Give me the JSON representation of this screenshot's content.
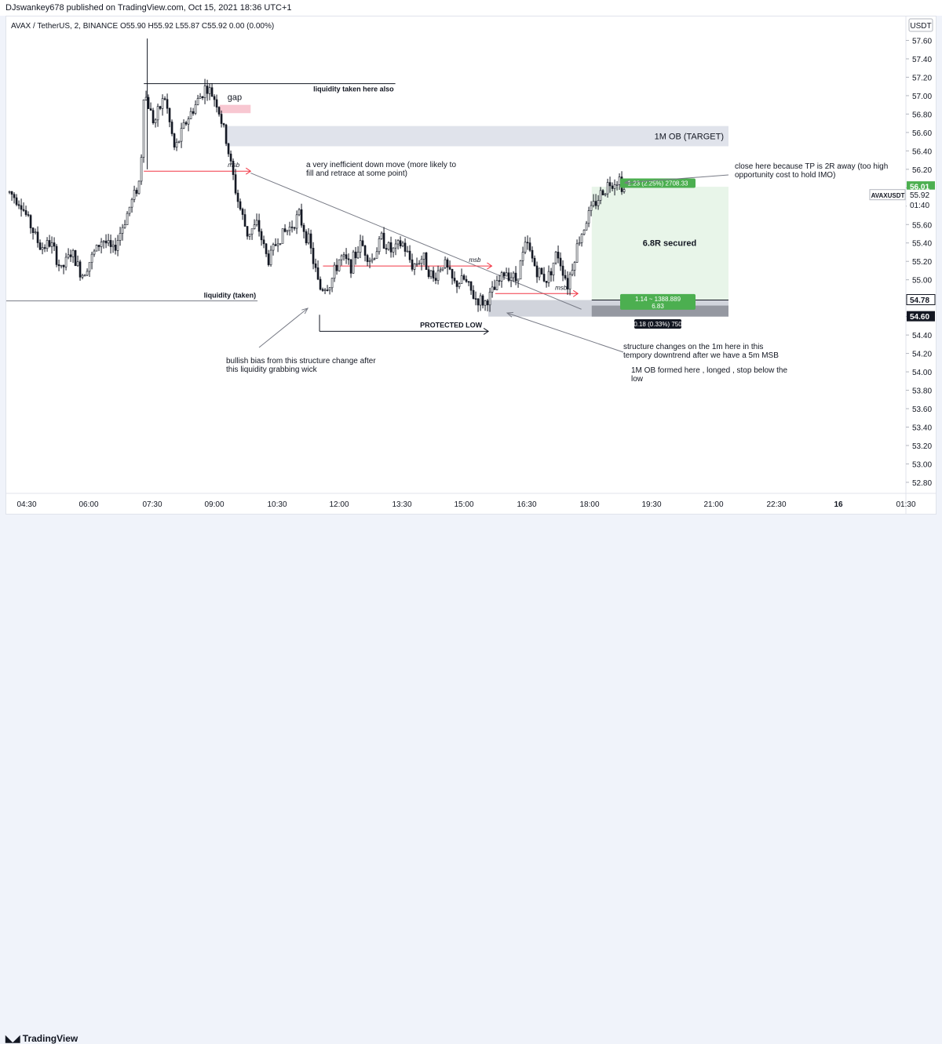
{
  "publisher_line": "DJswankey678 published on TradingView.com, Oct 15, 2021 18:36 UTC+1",
  "symbol_line": "AVAX / TetherUS, 2, BINANCE  O55.90  H55.92  L55.87  C55.92  0.00 (0.00%)",
  "footer_brand": "TradingView",
  "colors": {
    "up_candle": "#ffffff",
    "down_candle": "#131722",
    "accent_green": "#4caf50",
    "annotation_red": "#f23645",
    "zone_gray": "#e0e3eb"
  },
  "chart_data": {
    "type": "candlestick",
    "title": "AVAX / TetherUS, 2, BINANCE",
    "ohlc_header": {
      "open": 55.9,
      "high": 55.92,
      "low": 55.87,
      "close": 55.92,
      "change": "0.00 (0.00%)"
    },
    "currency": "USDT",
    "ylim": [
      52.68,
      57.86
    ],
    "y_ticks": [
      "57.60",
      "57.40",
      "57.20",
      "57.00",
      "56.80",
      "56.60",
      "56.40",
      "56.20",
      "56.00",
      "55.80",
      "55.60",
      "55.40",
      "55.20",
      "55.00",
      "54.80",
      "54.60",
      "54.40",
      "54.20",
      "54.00",
      "53.80",
      "53.60",
      "53.40",
      "53.20",
      "53.00",
      "52.80"
    ],
    "x_ticks": [
      "04:30",
      "06:00",
      "07:30",
      "09:00",
      "10:30",
      "12:00",
      "13:30",
      "15:00",
      "16:30",
      "18:00",
      "19:30",
      "21:00",
      "22:30",
      "16",
      "01:30"
    ],
    "price_labels": [
      {
        "label": "56.01",
        "value": 56.01,
        "style": "green"
      },
      {
        "label": "55.92",
        "value": 55.92,
        "style": "plain"
      },
      {
        "label": "01:40",
        "value": 55.81,
        "style": "plain"
      },
      {
        "label": "54.78",
        "value": 54.78,
        "style": "outline"
      },
      {
        "label": "54.60",
        "value": 54.6,
        "style": "dark"
      }
    ],
    "symbol_tag": "AVAXUSDT",
    "price_path": [
      [
        "04:05",
        55.95
      ],
      [
        "04:20",
        55.85
      ],
      [
        "04:35",
        55.6
      ],
      [
        "04:50",
        55.35
      ],
      [
        "05:05",
        55.4
      ],
      [
        "05:20",
        55.1
      ],
      [
        "05:35",
        55.3
      ],
      [
        "05:50",
        55.05
      ],
      [
        "06:05",
        55.25
      ],
      [
        "06:20",
        55.45
      ],
      [
        "06:35",
        55.3
      ],
      [
        "06:50",
        55.6
      ],
      [
        "07:05",
        55.9
      ],
      [
        "07:15",
        56.1
      ],
      [
        "07:20",
        57.05
      ],
      [
        "07:35",
        56.7
      ],
      [
        "07:50",
        57.0
      ],
      [
        "08:05",
        56.4
      ],
      [
        "08:20",
        56.7
      ],
      [
        "08:35",
        56.9
      ],
      [
        "08:50",
        57.1
      ],
      [
        "09:05",
        56.95
      ],
      [
        "09:20",
        56.5
      ],
      [
        "09:35",
        55.9
      ],
      [
        "09:50",
        55.5
      ],
      [
        "10:05",
        55.6
      ],
      [
        "10:20",
        55.2
      ],
      [
        "10:35",
        55.45
      ],
      [
        "10:50",
        55.55
      ],
      [
        "11:05",
        55.7
      ],
      [
        "11:20",
        55.4
      ],
      [
        "11:35",
        54.9
      ],
      [
        "11:50",
        54.95
      ],
      [
        "12:05",
        55.25
      ],
      [
        "12:20",
        55.15
      ],
      [
        "12:35",
        55.4
      ],
      [
        "12:50",
        55.2
      ],
      [
        "13:05",
        55.45
      ],
      [
        "13:20",
        55.3
      ],
      [
        "13:35",
        55.4
      ],
      [
        "13:50",
        55.15
      ],
      [
        "14:05",
        55.25
      ],
      [
        "14:20",
        55.0
      ],
      [
        "14:35",
        55.2
      ],
      [
        "14:50",
        54.95
      ],
      [
        "15:05",
        55.0
      ],
      [
        "15:20",
        54.8
      ],
      [
        "15:35",
        54.75
      ],
      [
        "15:50",
        54.9
      ],
      [
        "16:05",
        55.1
      ],
      [
        "16:20",
        55.0
      ],
      [
        "16:35",
        55.4
      ],
      [
        "16:50",
        55.1
      ],
      [
        "17:05",
        55.0
      ],
      [
        "17:20",
        55.3
      ],
      [
        "17:35",
        54.95
      ],
      [
        "17:50",
        55.4
      ],
      [
        "18:05",
        55.7
      ],
      [
        "18:20",
        55.9
      ],
      [
        "18:35",
        56.05
      ],
      [
        "18:50",
        56.1
      ],
      [
        "19:00",
        55.92
      ]
    ],
    "levels": [
      {
        "name": "liquidity-taken-here-also",
        "label": "liquidity taken here also",
        "price": 57.13,
        "from": "07:20",
        "to": "13:25",
        "color": "#131722"
      },
      {
        "name": "liquidity-taken",
        "label": "liquidity (taken)",
        "price": 54.77,
        "from": "03:55",
        "to": "10:05",
        "color": "#787b86"
      },
      {
        "name": "protected-low",
        "label": "PROTECTED LOW",
        "price": 54.44,
        "from": "11:35",
        "to": "15:40",
        "color": "#131722"
      },
      {
        "name": "msb-1",
        "label": "msb",
        "price": 56.18,
        "from": "07:20",
        "to": "09:55",
        "color": "#f23645"
      },
      {
        "name": "msb-2",
        "label": "msb",
        "price": 55.15,
        "from": "11:40",
        "to": "15:45",
        "color": "#f23645"
      },
      {
        "name": "msb-3",
        "label": "msb",
        "price": 54.85,
        "from": "15:50",
        "to": "17:50",
        "color": "#f23645"
      }
    ],
    "zones": [
      {
        "name": "ob-target-zone",
        "label": "1M OB (TARGET)",
        "from": "09:20",
        "to": "21:00",
        "price_top": 56.67,
        "price_bottom": 56.45,
        "color": "#e0e3eb"
      },
      {
        "name": "gap-zone",
        "label": "gap",
        "from": "09:10",
        "to": "09:55",
        "price_top": 56.9,
        "price_bottom": 56.81,
        "color": "#f8c7d1"
      },
      {
        "name": "long-entry-zone",
        "from": "15:40",
        "to": "21:00",
        "price_top": 54.78,
        "price_bottom": 54.6,
        "color": "#d1d4dc"
      },
      {
        "name": "profit-zone",
        "from": "18:10",
        "to": "21:00",
        "price_top": 56.01,
        "price_bottom": 54.78,
        "color": "#e8f5e9"
      }
    ],
    "trendline": {
      "from": [
        "09:55",
        56.16
      ],
      "to": [
        "17:55",
        54.68
      ]
    },
    "position_labels": [
      {
        "name": "tp-label",
        "text": "1.23 (2.25%) 2708.33",
        "price": 56.05,
        "style": "green"
      },
      {
        "name": "entry-label",
        "text": "1.14 ~ 1388.889",
        "text2": "6.83",
        "price": 54.76,
        "style": "green"
      },
      {
        "name": "sl-label",
        "text": "0.18 (0.33%) 750",
        "price": 54.52,
        "style": "dark"
      },
      {
        "name": "ratio-label",
        "text": "6.8R secured",
        "price": 55.4,
        "style": "plain-bold"
      }
    ],
    "annotations": [
      {
        "name": "inefficient-move-note",
        "lines": [
          "a very inefficient down move (more likely to",
          "fill and retrace at some point)"
        ]
      },
      {
        "name": "close-here-note",
        "lines": [
          "close here because TP is 2R away (too high",
          "opportunity cost to hold IMO)"
        ]
      },
      {
        "name": "bullish-bias-note",
        "lines": [
          "bullish bias from this structure change after",
          "this liquidity grabbing wick"
        ]
      },
      {
        "name": "structure-change-note",
        "lines": [
          "structure changes on the 1m here in this",
          "tempory downtrend after we have a 5m MSB"
        ]
      },
      {
        "name": "ob-formed-note",
        "lines": [
          "1M OB formed here , longed , stop below the",
          "low"
        ]
      }
    ]
  }
}
